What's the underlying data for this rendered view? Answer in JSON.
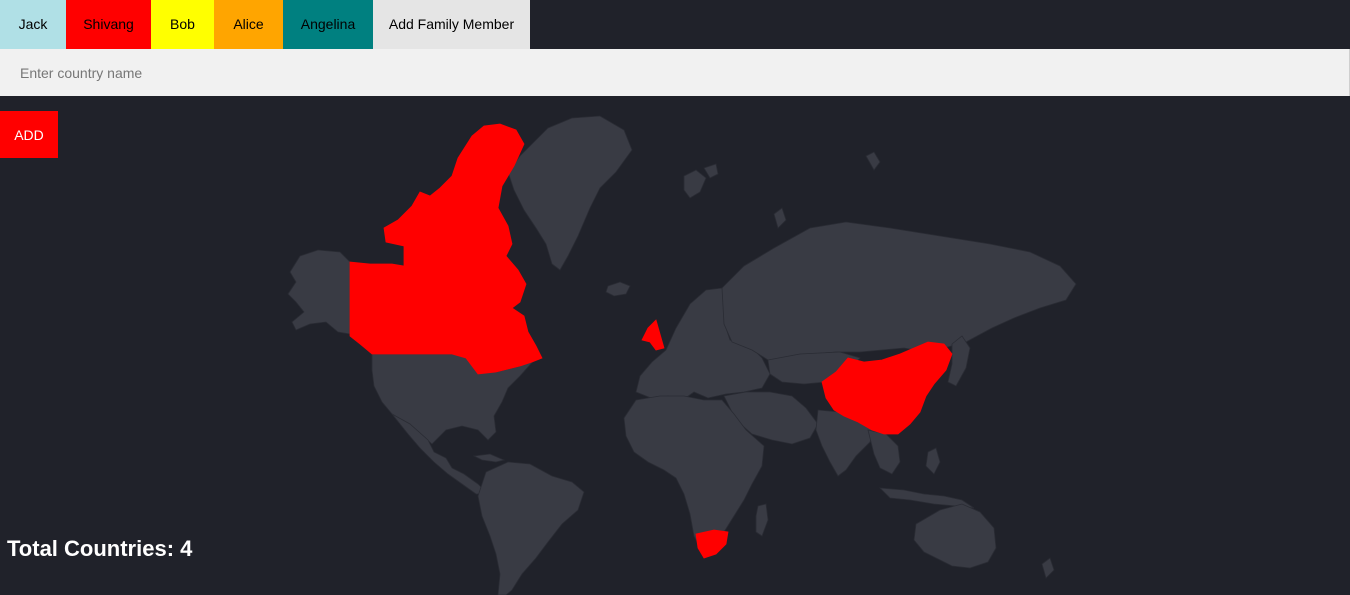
{
  "family_tabs": [
    {
      "label": "Jack",
      "color": "#b0e0e6"
    },
    {
      "label": "Shivang",
      "color": "#ff0000"
    },
    {
      "label": "Bob",
      "color": "#ffff00"
    },
    {
      "label": "Alice",
      "color": "#ffa500"
    },
    {
      "label": "Angelina",
      "color": "#008080"
    }
  ],
  "add_family_member": {
    "label": "Add Family Member",
    "color": "#e5e5e5"
  },
  "country_input": {
    "placeholder": "Enter country name",
    "value": ""
  },
  "add_button": {
    "label": "ADD",
    "color": "#ff0000"
  },
  "map": {
    "background_color": "#20222a",
    "land_color": "#393b44",
    "border_color": "#2a2c34",
    "highlight_color": "#ff0000",
    "highlighted_countries": [
      "Canada",
      "United Kingdom",
      "China",
      "South Africa"
    ]
  },
  "total": {
    "text": "Total Countries: 4"
  }
}
